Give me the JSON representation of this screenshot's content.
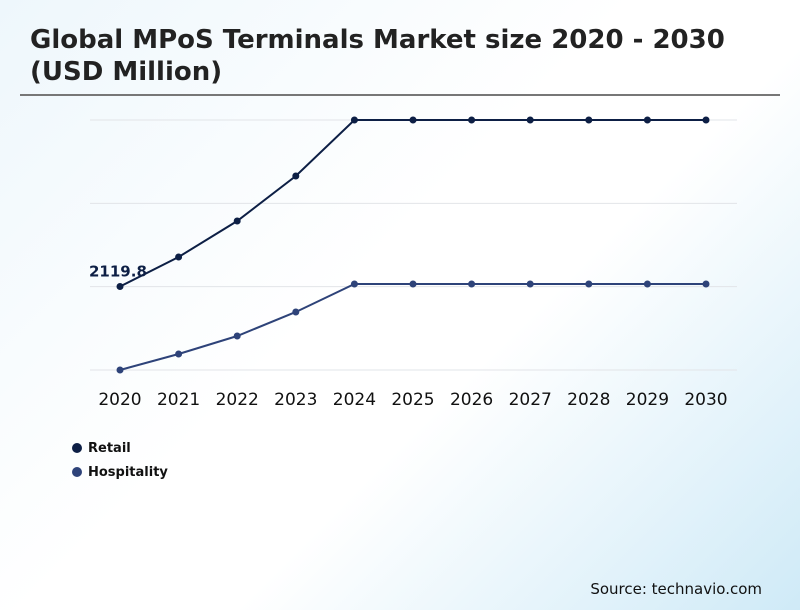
{
  "title": "Global MPoS Terminals Market size 2020 - 2030 (USD Million)",
  "source": "Source: technavio.com",
  "chart_data": {
    "type": "line",
    "title": "Global MPoS Terminals Market size 2020 - 2030 (USD Million)",
    "categories": [
      "2020",
      "2021",
      "2022",
      "2023",
      "2024",
      "2025",
      "2026",
      "2027",
      "2028",
      "2029",
      "2030"
    ],
    "series": [
      {
        "name": "Retail",
        "color": "#0d1f45",
        "values": [
          2119.8,
          2869,
          3783,
          4925,
          6347,
          6347,
          6347,
          6347,
          6347,
          6347,
          6347
        ]
      },
      {
        "name": "Hospitality",
        "color": "#2e4379",
        "values": [
          0,
          406,
          863,
          1473,
          2183,
          2183,
          2183,
          2183,
          2183,
          2183,
          2183
        ]
      }
    ],
    "annotations": [
      {
        "series": "Retail",
        "category": "2020",
        "text": "2119.8"
      }
    ],
    "ylim": [
      0,
      6347
    ],
    "grid": true,
    "legend": "bottom-left"
  }
}
